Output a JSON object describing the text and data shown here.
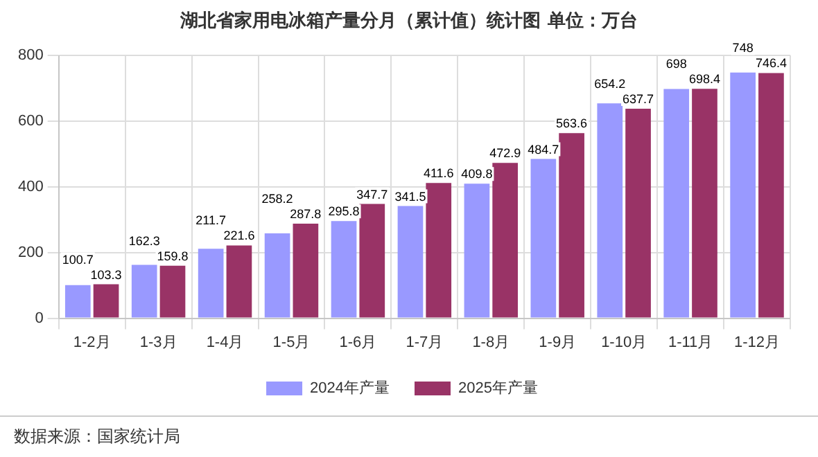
{
  "chart_data": {
    "type": "bar",
    "title": "湖北省家用电冰箱产量分月（累计值）统计图 单位：万台",
    "categories": [
      "1-2月",
      "1-3月",
      "1-4月",
      "1-5月",
      "1-6月",
      "1-7月",
      "1-8月",
      "1-9月",
      "1-10月",
      "1-11月",
      "1-12月"
    ],
    "series": [
      {
        "name": "2024年产量",
        "color": "#9999ff",
        "values": [
          100.7,
          162.3,
          211.7,
          258.2,
          295.8,
          341.5,
          409.8,
          484.7,
          654.2,
          698,
          748
        ]
      },
      {
        "name": "2025年产量",
        "color": "#993366",
        "values": [
          103.3,
          159.8,
          221.6,
          287.8,
          347.7,
          411.6,
          472.9,
          563.6,
          637.7,
          698.4,
          746.4
        ]
      }
    ],
    "ylim": [
      0,
      800
    ],
    "yticks": [
      0,
      200,
      400,
      600,
      800
    ],
    "grid": true,
    "legend": "bottom",
    "data_labels": true,
    "annotations": [
      "数据来源：国家统计局"
    ]
  }
}
